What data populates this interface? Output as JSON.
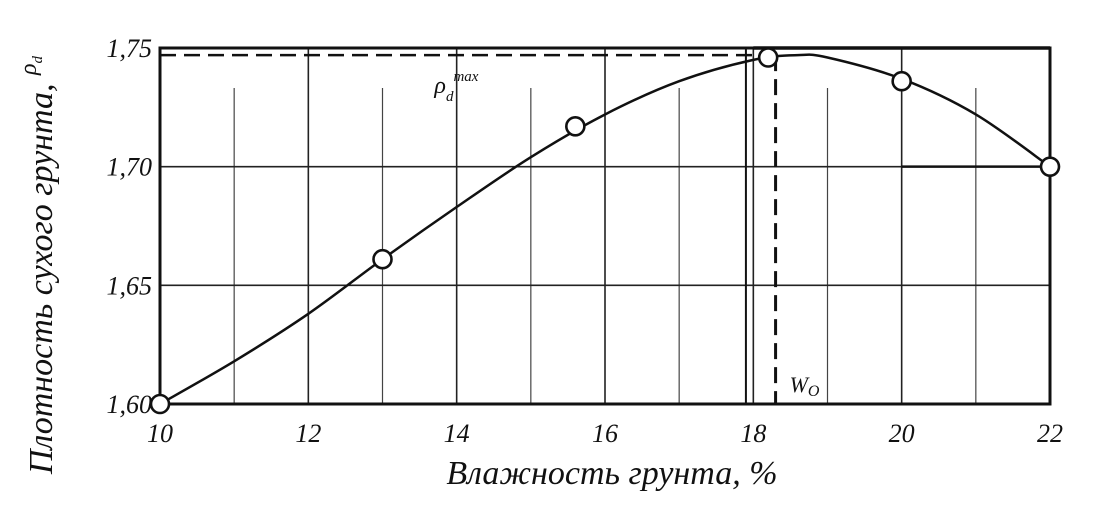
{
  "chart_data": {
    "type": "line",
    "title": "",
    "xlabel": "Влажность грунта, %",
    "ylabel": "Плотность сухого грунта, ",
    "ylabel_symbol": "ρ",
    "ylabel_symbol_sub": "d",
    "xlim": [
      10,
      22
    ],
    "ylim": [
      1.6,
      1.75
    ],
    "x_ticks": [
      10,
      12,
      14,
      16,
      18,
      20,
      22
    ],
    "x_tick_labels": [
      "10",
      "12",
      "14",
      "16",
      "18",
      "20",
      "22"
    ],
    "y_ticks": [
      1.6,
      1.65,
      1.7,
      1.75
    ],
    "y_tick_labels": [
      "1,60",
      "1,65",
      "1,70",
      "1,75"
    ],
    "grid": true,
    "series": [
      {
        "points_x": [
          10,
          13,
          15.6,
          18.2,
          20,
          22
        ],
        "points_y": [
          1.6,
          1.661,
          1.717,
          1.746,
          1.736,
          1.7
        ],
        "curve_x": [
          10,
          11,
          12,
          13,
          14,
          15,
          16,
          17,
          18,
          18.6,
          19,
          20,
          21,
          22
        ],
        "curve_y": [
          1.6,
          1.618,
          1.638,
          1.661,
          1.683,
          1.704,
          1.722,
          1.736,
          1.745,
          1.747,
          1.746,
          1.737,
          1.722,
          1.7
        ]
      }
    ],
    "annotations": {
      "rho_max": {
        "symbol": "ρ",
        "sub": "d",
        "sup": "max",
        "y": 1.747
      },
      "w_opt": {
        "symbol": "W",
        "sub": "O",
        "x": 18.3
      }
    }
  }
}
